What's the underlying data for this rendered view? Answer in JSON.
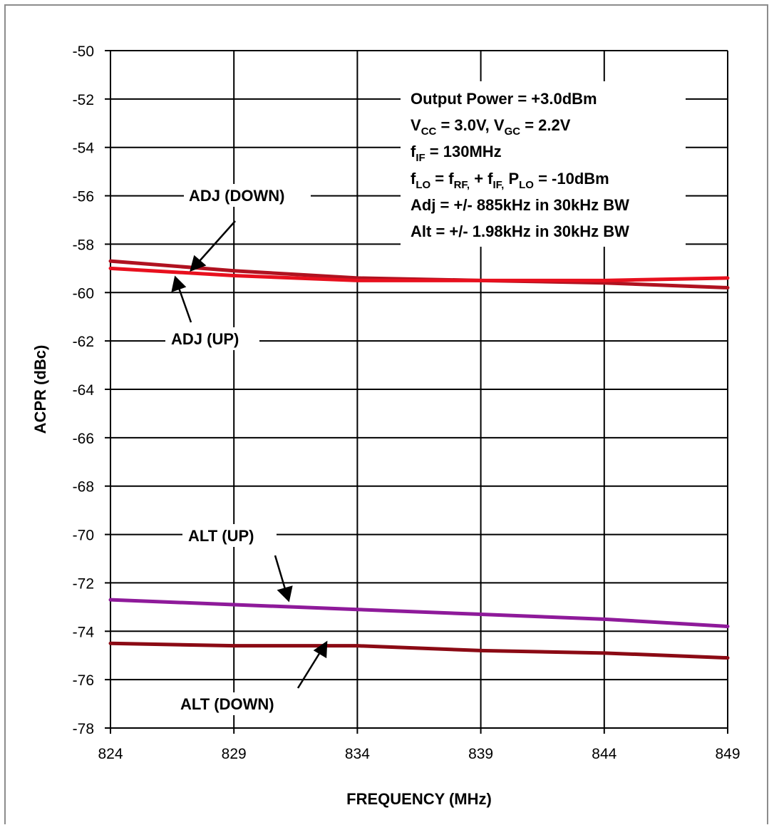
{
  "chart_data": {
    "type": "line",
    "xlabel": "FREQUENCY (MHz)",
    "ylabel": "ACPR (dBc)",
    "xlim": [
      824,
      849
    ],
    "ylim": [
      -78,
      -50
    ],
    "xticks": [
      824,
      829,
      834,
      839,
      844,
      849
    ],
    "yticks": [
      -50,
      -52,
      -54,
      -56,
      -58,
      -60,
      -62,
      -64,
      -66,
      -68,
      -70,
      -72,
      -74,
      -76,
      -78
    ],
    "grid": true,
    "x": [
      824,
      829,
      834,
      839,
      844,
      849
    ],
    "series": [
      {
        "name": "ADJ (DOWN)",
        "color": "#b01220",
        "values": [
          -58.7,
          -59.1,
          -59.4,
          -59.5,
          -59.6,
          -59.8
        ]
      },
      {
        "name": "ADJ (UP)",
        "color": "#e8101e",
        "values": [
          -59.0,
          -59.3,
          -59.5,
          -59.5,
          -59.5,
          -59.4
        ]
      },
      {
        "name": "ALT (UP)",
        "color": "#8e1a9a",
        "values": [
          -72.7,
          -72.9,
          -73.1,
          -73.3,
          -73.5,
          -73.8
        ]
      },
      {
        "name": "ALT (DOWN)",
        "color": "#8b0a14",
        "values": [
          -74.5,
          -74.6,
          -74.6,
          -74.8,
          -74.9,
          -75.1
        ]
      }
    ],
    "annotations": {
      "line1": "Output Power = +3.0dBm",
      "line2": {
        "a": "V",
        "a_sub": "CC",
        "b": " = 3.0V, V",
        "b_sub": "GC",
        "c": " = 2.2V"
      },
      "line3": {
        "a": "f",
        "a_sub": "IF",
        "b": " = 130MHz"
      },
      "line4": {
        "a": "f",
        "a_sub": "LO",
        "b": " = f",
        "b_sub": "RF,",
        "c": " + f",
        "c_sub": "IF,",
        "d": " P",
        "d_sub": "LO",
        "e": " = -10dBm"
      },
      "line5": "Adj = +/- 885kHz in 30kHz BW",
      "line6": "Alt = +/- 1.98kHz in 30kHz BW"
    }
  }
}
